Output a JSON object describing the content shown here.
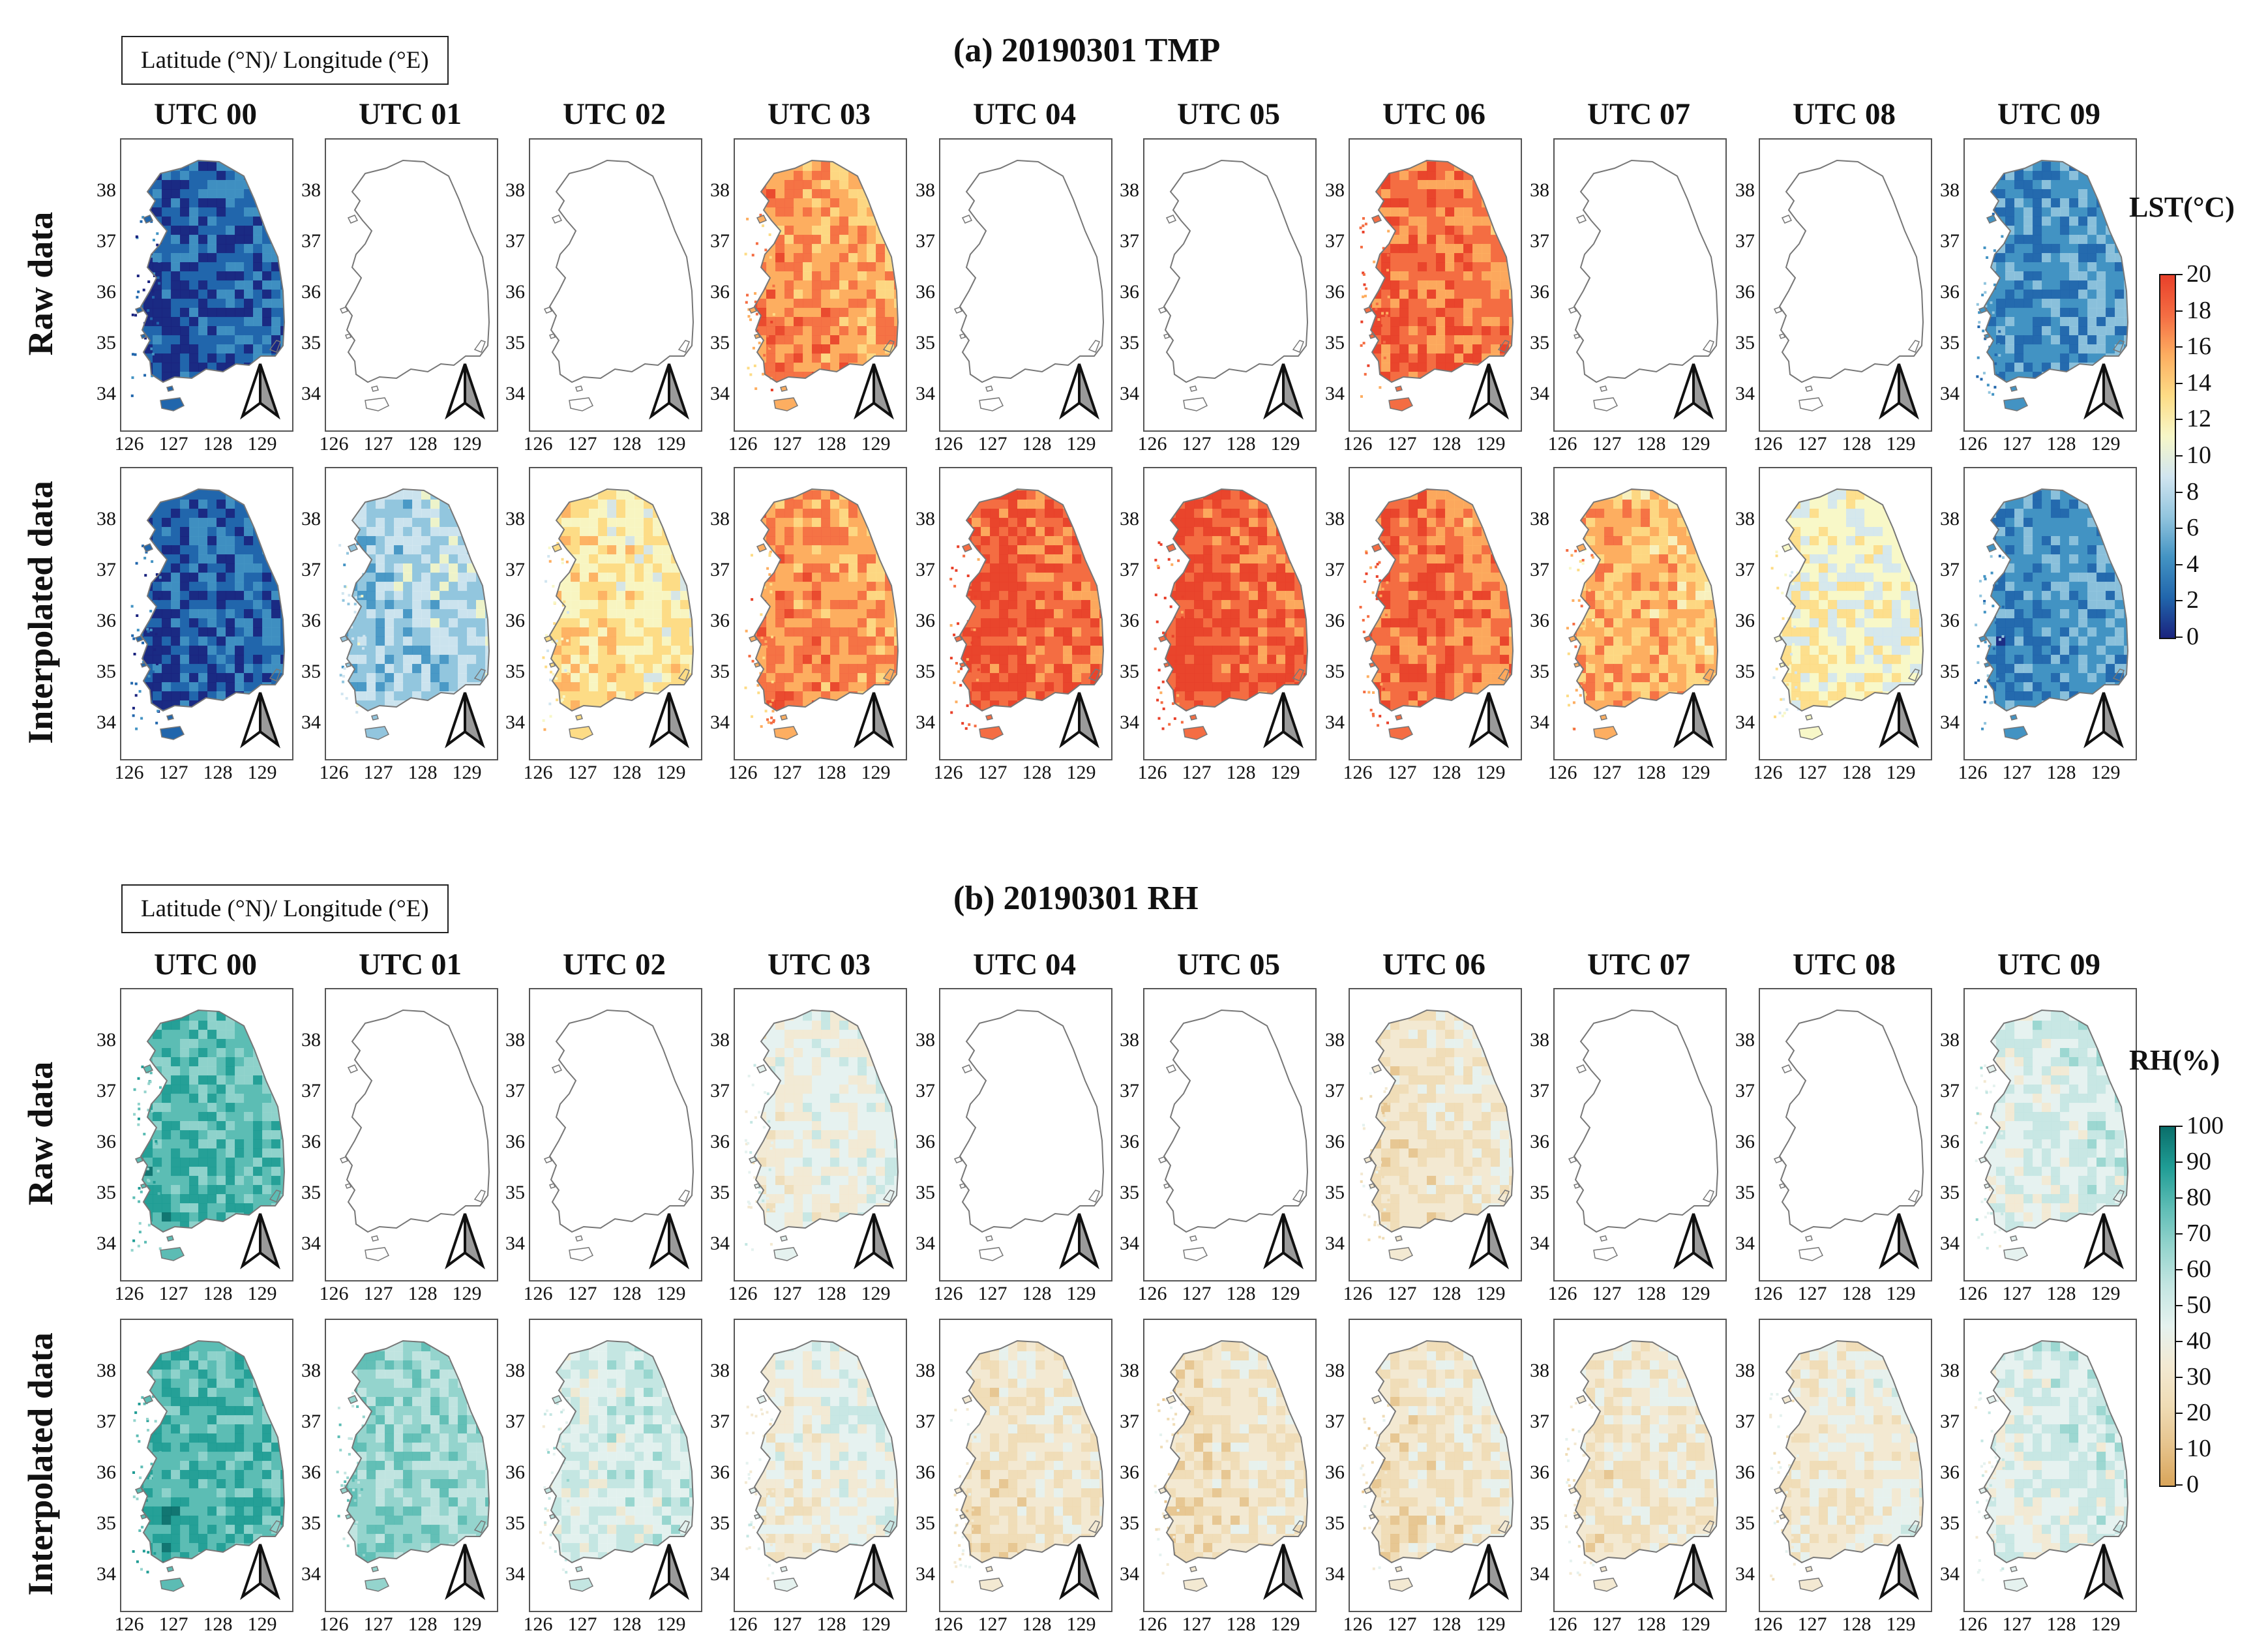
{
  "axis_note": "Latitude (°N)/ Longitude (°E)",
  "north_arrow_icon": "north-arrow-icon",
  "columns": [
    "UTC 00",
    "UTC 01",
    "UTC 02",
    "UTC 03",
    "UTC 04",
    "UTC 05",
    "UTC 06",
    "UTC 07",
    "UTC 08",
    "UTC 09"
  ],
  "rows": [
    "Raw data",
    "Interpolated data"
  ],
  "lat_ticks": [
    "38",
    "37",
    "36",
    "35",
    "34"
  ],
  "lon_ticks": [
    "126",
    "127",
    "128",
    "129"
  ],
  "sections": [
    {
      "id": "tmp",
      "title": "(a) 20190301 TMP",
      "colorbar": {
        "title": "LST(°C)",
        "ticks": [
          "20",
          "18",
          "16",
          "14",
          "12",
          "10",
          "8",
          "6",
          "4",
          "2",
          "0"
        ],
        "stops": [
          "#1a237e",
          "#2166ac",
          "#4393c3",
          "#92c5de",
          "#d1e5f0",
          "#f7f7c8",
          "#fddc86",
          "#fdae61",
          "#f46d43",
          "#e8402a"
        ]
      },
      "raw": [
        {
          "status": "data",
          "level": 0.1
        },
        {
          "status": "missing"
        },
        {
          "status": "missing"
        },
        {
          "status": "data",
          "level": 0.82
        },
        {
          "status": "missing"
        },
        {
          "status": "missing"
        },
        {
          "status": "data",
          "level": 0.88
        },
        {
          "status": "missing"
        },
        {
          "status": "missing"
        },
        {
          "status": "data",
          "level": 0.22
        }
      ],
      "interpolated": [
        {
          "status": "data",
          "level": 0.1
        },
        {
          "status": "data",
          "level": 0.38
        },
        {
          "status": "data",
          "level": 0.62
        },
        {
          "status": "data",
          "level": 0.82
        },
        {
          "status": "data",
          "level": 0.92
        },
        {
          "status": "data",
          "level": 0.94
        },
        {
          "status": "data",
          "level": 0.88
        },
        {
          "status": "data",
          "level": 0.74
        },
        {
          "status": "data",
          "level": 0.55
        },
        {
          "status": "data",
          "level": 0.22
        }
      ]
    },
    {
      "id": "rh",
      "title": "(b) 20190301 RH",
      "colorbar": {
        "title": "RH(%)",
        "ticks": [
          "100",
          "90",
          "80",
          "70",
          "60",
          "50",
          "40",
          "30",
          "20",
          "10",
          "0"
        ],
        "stops": [
          "#d9a55a",
          "#e6c38c",
          "#efdcb5",
          "#f3e9d2",
          "#e5f2ef",
          "#c4e6e2",
          "#94d4cd",
          "#5cbcb4",
          "#1f9c94",
          "#0a6e6a"
        ]
      },
      "raw": [
        {
          "status": "data",
          "level": 0.78
        },
        {
          "status": "missing"
        },
        {
          "status": "missing"
        },
        {
          "status": "data",
          "level": 0.42
        },
        {
          "status": "missing"
        },
        {
          "status": "missing"
        },
        {
          "status": "data",
          "level": 0.3
        },
        {
          "status": "missing"
        },
        {
          "status": "missing"
        },
        {
          "status": "data",
          "level": 0.48
        }
      ],
      "interpolated": [
        {
          "status": "data",
          "level": 0.8
        },
        {
          "status": "data",
          "level": 0.65
        },
        {
          "status": "data",
          "level": 0.5
        },
        {
          "status": "data",
          "level": 0.4
        },
        {
          "status": "data",
          "level": 0.3
        },
        {
          "status": "data",
          "level": 0.28
        },
        {
          "status": "data",
          "level": 0.3
        },
        {
          "status": "data",
          "level": 0.32
        },
        {
          "status": "data",
          "level": 0.36
        },
        {
          "status": "data",
          "level": 0.48
        }
      ]
    }
  ]
}
